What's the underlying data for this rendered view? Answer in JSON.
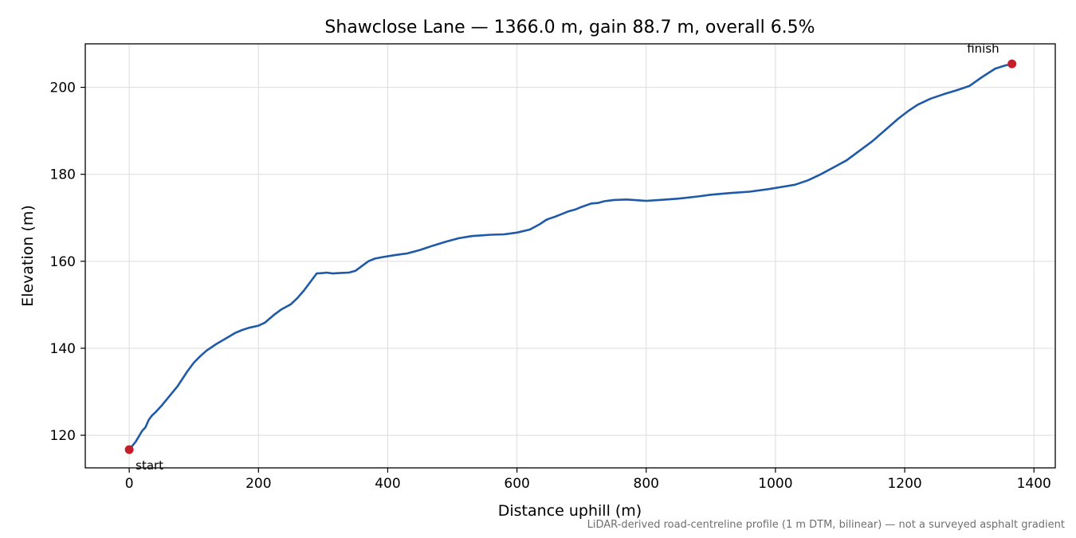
{
  "chart_data": {
    "type": "line",
    "title": "Shawclose Lane — 1366.0 m, gain 88.7 m, overall 6.5%",
    "xlabel": "Distance uphill (m)",
    "ylabel": "Elevation (m)",
    "xlim": [
      -68,
      1433
    ],
    "ylim": [
      112.5,
      210.0
    ],
    "xticks": [
      0,
      200,
      400,
      600,
      800,
      1000,
      1200,
      1400
    ],
    "yticks": [
      120,
      140,
      160,
      180,
      200
    ],
    "grid": true,
    "colors": {
      "line": "#1f5aa8",
      "marker": "#c41e2a",
      "grid": "#dddddd"
    },
    "series": [
      {
        "x": [
          0,
          10,
          20,
          25,
          30,
          35,
          40,
          50,
          60,
          75,
          90,
          100,
          110,
          120,
          135,
          150,
          165,
          175,
          185,
          200,
          210,
          225,
          235,
          250,
          260,
          270,
          280,
          290,
          300,
          305,
          315,
          325,
          340,
          350,
          360,
          370,
          380,
          390,
          410,
          430,
          450,
          470,
          490,
          510,
          530,
          550,
          560,
          580,
          600,
          620,
          635,
          645,
          650,
          660,
          670,
          680,
          690,
          700,
          715,
          725,
          735,
          750,
          770,
          790,
          800,
          820,
          850,
          880,
          900,
          930,
          960,
          990,
          1010,
          1030,
          1050,
          1070,
          1090,
          1110,
          1130,
          1150,
          1170,
          1190,
          1205,
          1220,
          1240,
          1260,
          1280,
          1300,
          1320,
          1340,
          1355,
          1366
        ],
        "y": [
          116.7,
          118.5,
          121.0,
          121.8,
          123.5,
          124.5,
          125.2,
          126.8,
          128.6,
          131.3,
          134.7,
          136.7,
          138.2,
          139.5,
          141.0,
          142.3,
          143.6,
          144.2,
          144.7,
          145.2,
          145.9,
          147.8,
          148.9,
          150.1,
          151.5,
          153.2,
          155.2,
          157.2,
          157.3,
          157.4,
          157.2,
          157.3,
          157.4,
          157.8,
          158.9,
          160.0,
          160.6,
          160.9,
          161.4,
          161.8,
          162.6,
          163.6,
          164.5,
          165.3,
          165.8,
          166.0,
          166.1,
          166.2,
          166.6,
          167.3,
          168.5,
          169.5,
          169.8,
          170.3,
          170.9,
          171.5,
          171.9,
          172.5,
          173.3,
          173.4,
          173.8,
          174.1,
          174.2,
          174.0,
          173.9,
          174.1,
          174.4,
          174.9,
          175.3,
          175.7,
          176.0,
          176.6,
          177.1,
          177.6,
          178.6,
          180.0,
          181.6,
          183.2,
          185.4,
          187.6,
          190.2,
          192.8,
          194.5,
          196.0,
          197.4,
          198.4,
          199.3,
          200.3,
          202.4,
          204.3,
          205.0,
          205.4
        ]
      }
    ],
    "annotations": [
      {
        "text": "start",
        "x": 0,
        "y": 116.7
      },
      {
        "text": "finish",
        "x": 1366,
        "y": 205.4
      }
    ],
    "footnote": "LiDAR-derived road-centreline profile (1 m DTM, bilinear) — not a surveyed asphalt gradient"
  }
}
